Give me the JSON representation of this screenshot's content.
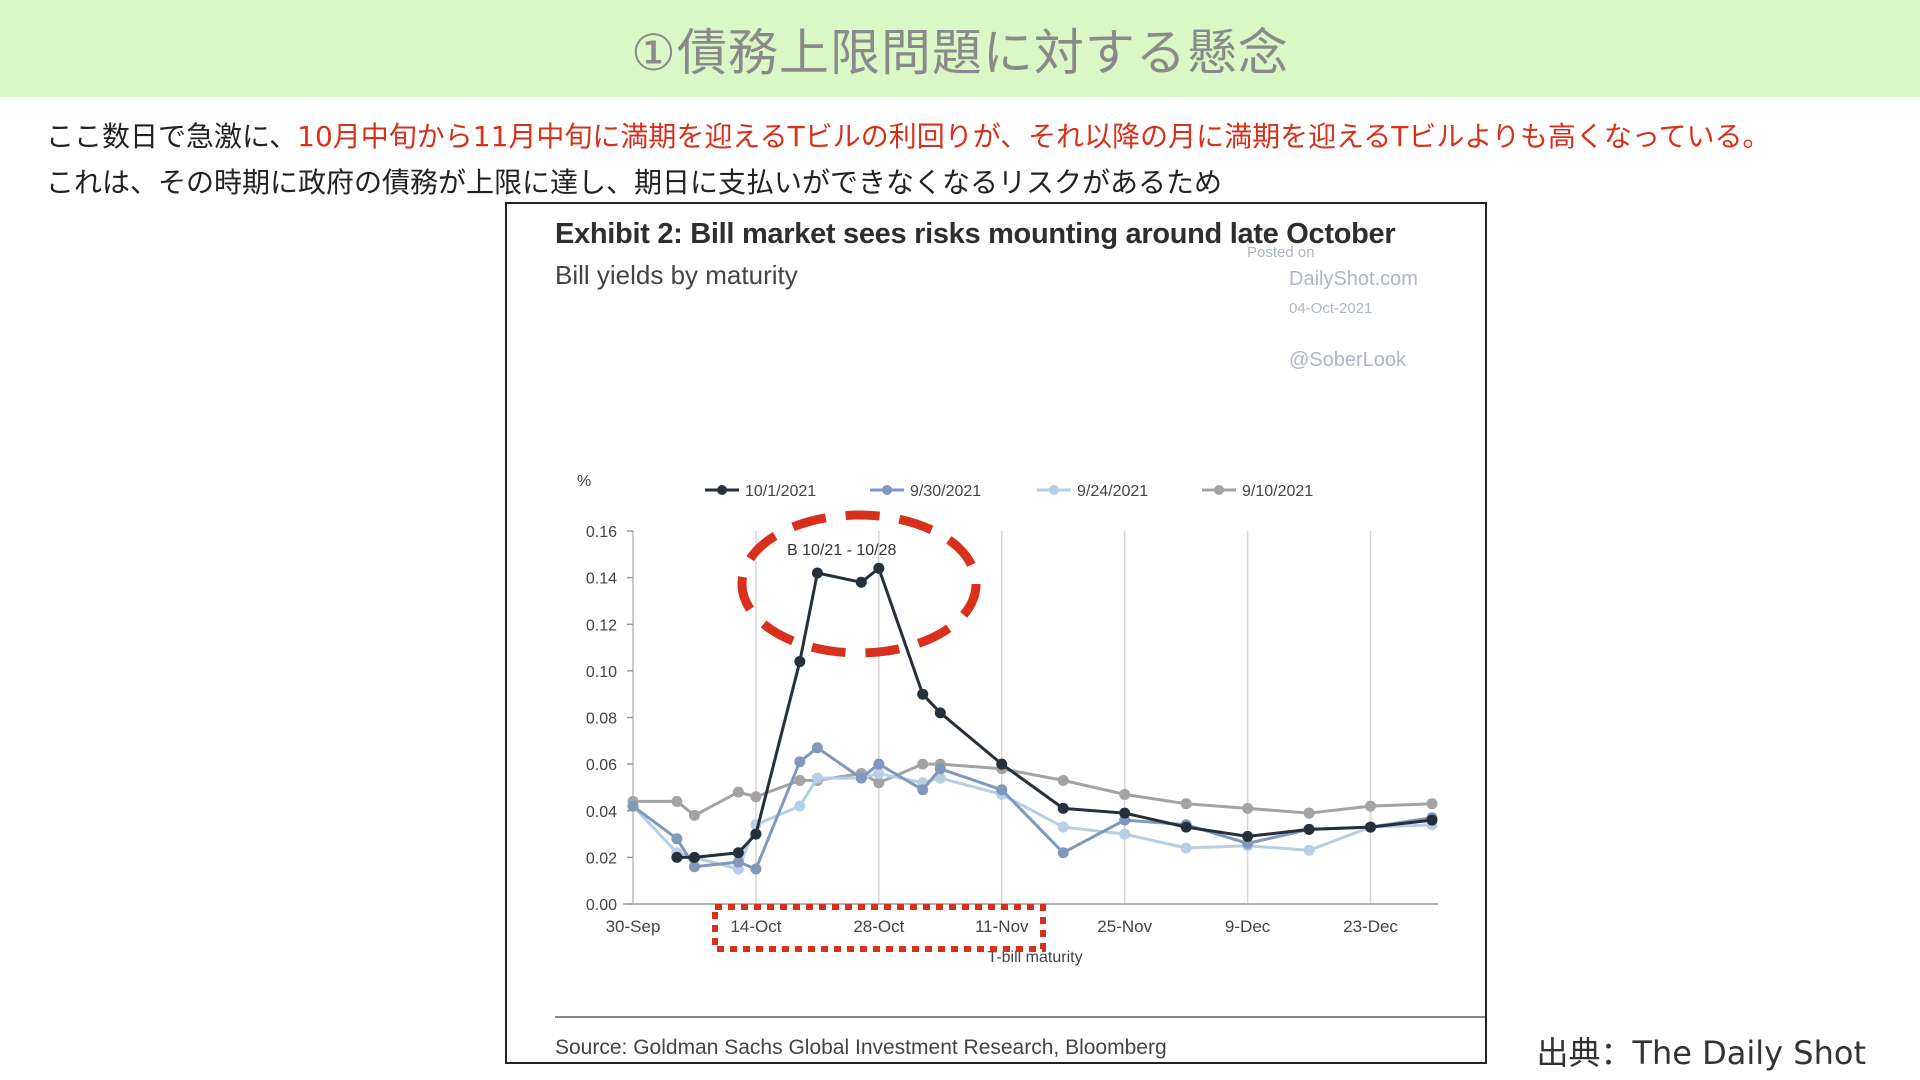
{
  "slide": {
    "title": "①債務上限問題に対する懸念",
    "intro_line1_black": "ここ数日で急激に、",
    "intro_line1_red": "10月中旬から11月中旬に満期を迎えるTビルの利回りが、それ以降の月に満期を迎えるTビルよりも高くなっている。",
    "intro_line2": "これは、その時期に政府の債務が上限に達し、期日に支払いができなくなるリスクがあるため",
    "credit": "出典：The Daily Shot"
  },
  "watermark": {
    "posted": "Posted on",
    "site": "DailyShot.com",
    "date": "04-Oct-2021",
    "handle": "@SoberLook"
  },
  "highlight_color": "#d9301c",
  "chart_data": {
    "type": "line",
    "title": "Exhibit 2: Bill market sees risks mounting around late October",
    "subtitle": "Bill yields by maturity",
    "xlabel": "T-bill maturity",
    "ylabel": "%",
    "source": "Source: Goldman Sachs Global Investment Research, Bloomberg",
    "annotation": "B 10/21 - 10/28",
    "x_ticks": [
      "30-Sep",
      "14-Oct",
      "28-Oct",
      "11-Nov",
      "25-Nov",
      "9-Dec",
      "23-Dec"
    ],
    "y_ticks": [
      "0.00",
      "0.02",
      "0.04",
      "0.06",
      "0.08",
      "0.10",
      "0.12",
      "0.14",
      "0.16"
    ],
    "ylim": [
      0,
      0.16
    ],
    "xlim": [
      "2021-09-30",
      "2021-12-30"
    ],
    "grid": "vertical",
    "legend": "top",
    "series": [
      {
        "name": "10/1/2021",
        "color": "#26303c",
        "points": [
          [
            "2021-10-05",
            0.02
          ],
          [
            "2021-10-07",
            0.02
          ],
          [
            "2021-10-12",
            0.022
          ],
          [
            "2021-10-14",
            0.03
          ],
          [
            "2021-10-19",
            0.104
          ],
          [
            "2021-10-21",
            0.142
          ],
          [
            "2021-10-26",
            0.138
          ],
          [
            "2021-10-28",
            0.144
          ],
          [
            "2021-11-02",
            0.09
          ],
          [
            "2021-11-04",
            0.082
          ],
          [
            "2021-11-11",
            0.06
          ],
          [
            "2021-11-18",
            0.041
          ],
          [
            "2021-11-25",
            0.039
          ],
          [
            "2021-12-02",
            0.033
          ],
          [
            "2021-12-09",
            0.029
          ],
          [
            "2021-12-16",
            0.032
          ],
          [
            "2021-12-23",
            0.033
          ],
          [
            "2021-12-30",
            0.036
          ]
        ]
      },
      {
        "name": "9/30/2021",
        "color": "#7f98bb",
        "points": [
          [
            "2021-09-30",
            0.042
          ],
          [
            "2021-10-05",
            0.028
          ],
          [
            "2021-10-07",
            0.016
          ],
          [
            "2021-10-12",
            0.018
          ],
          [
            "2021-10-14",
            0.015
          ],
          [
            "2021-10-19",
            0.061
          ],
          [
            "2021-10-21",
            0.067
          ],
          [
            "2021-10-26",
            0.054
          ],
          [
            "2021-10-28",
            0.06
          ],
          [
            "2021-11-02",
            0.049
          ],
          [
            "2021-11-04",
            0.058
          ],
          [
            "2021-11-11",
            0.049
          ],
          [
            "2021-11-18",
            0.022
          ],
          [
            "2021-11-25",
            0.036
          ],
          [
            "2021-12-02",
            0.034
          ],
          [
            "2021-12-09",
            0.026
          ],
          [
            "2021-12-16",
            0.032
          ],
          [
            "2021-12-23",
            0.033
          ],
          [
            "2021-12-30",
            0.037
          ]
        ]
      },
      {
        "name": "9/24/2021",
        "color": "#b8cde6",
        "points": [
          [
            "2021-09-30",
            0.042
          ],
          [
            "2021-10-05",
            0.022
          ],
          [
            "2021-10-07",
            0.02
          ],
          [
            "2021-10-12",
            0.015
          ],
          [
            "2021-10-14",
            0.034
          ],
          [
            "2021-10-19",
            0.042
          ],
          [
            "2021-10-21",
            0.054
          ],
          [
            "2021-10-26",
            0.054
          ],
          [
            "2021-10-28",
            0.056
          ],
          [
            "2021-11-02",
            0.052
          ],
          [
            "2021-11-04",
            0.054
          ],
          [
            "2021-11-11",
            0.047
          ],
          [
            "2021-11-18",
            0.033
          ],
          [
            "2021-11-25",
            0.03
          ],
          [
            "2021-12-02",
            0.024
          ],
          [
            "2021-12-09",
            0.025
          ],
          [
            "2021-12-16",
            0.023
          ],
          [
            "2021-12-23",
            0.033
          ],
          [
            "2021-12-30",
            0.034
          ]
        ]
      },
      {
        "name": "9/10/2021",
        "color": "#a3a3a3",
        "points": [
          [
            "2021-09-30",
            0.044
          ],
          [
            "2021-10-05",
            0.044
          ],
          [
            "2021-10-07",
            0.038
          ],
          [
            "2021-10-12",
            0.048
          ],
          [
            "2021-10-14",
            0.046
          ],
          [
            "2021-10-19",
            0.053
          ],
          [
            "2021-10-21",
            0.053
          ],
          [
            "2021-10-26",
            0.056
          ],
          [
            "2021-10-28",
            0.052
          ],
          [
            "2021-11-02",
            0.06
          ],
          [
            "2021-11-04",
            0.06
          ],
          [
            "2021-11-11",
            0.058
          ],
          [
            "2021-11-18",
            0.053
          ],
          [
            "2021-11-25",
            0.047
          ],
          [
            "2021-12-02",
            0.043
          ],
          [
            "2021-12-09",
            0.041
          ],
          [
            "2021-12-16",
            0.039
          ],
          [
            "2021-12-23",
            0.042
          ],
          [
            "2021-12-30",
            0.043
          ]
        ]
      }
    ]
  }
}
